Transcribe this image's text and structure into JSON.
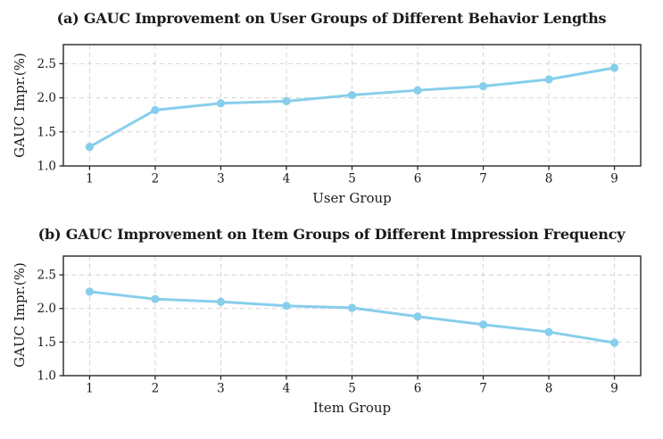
{
  "figure": {
    "background": "#ffffff",
    "text_color": "#1a1a1a"
  },
  "chart_data": [
    {
      "type": "line",
      "title": "(a) GAUC Improvement on User Groups of Different Behavior Lengths",
      "xlabel": "User Group",
      "ylabel": "GAUC Impr.(%)",
      "x": [
        1,
        2,
        3,
        4,
        5,
        6,
        7,
        8,
        9
      ],
      "values": [
        1.28,
        1.82,
        1.92,
        1.95,
        2.04,
        2.11,
        2.17,
        2.27,
        2.44
      ],
      "xtick_labels": [
        "1",
        "2",
        "3",
        "4",
        "5",
        "6",
        "7",
        "8",
        "9"
      ],
      "ytick_values": [
        1.0,
        1.5,
        2.0,
        2.5
      ],
      "ytick_labels": [
        "1.0",
        "1.5",
        "2.0",
        "2.5"
      ],
      "xlim": [
        0.6,
        9.4
      ],
      "ylim": [
        1.0,
        2.78
      ],
      "grid": true,
      "legend": "none",
      "line_color": "#87CEEB",
      "grid_color": "#d5d5d5",
      "spine_color": "#262626",
      "marker": "circle"
    },
    {
      "type": "line",
      "title": "(b) GAUC Improvement on Item Groups of Different Impression Frequency",
      "xlabel": "Item Group",
      "ylabel": "GAUC Impr.(%)",
      "x": [
        1,
        2,
        3,
        4,
        5,
        6,
        7,
        8,
        9
      ],
      "values": [
        2.25,
        2.14,
        2.1,
        2.04,
        2.01,
        1.88,
        1.76,
        1.65,
        1.49
      ],
      "xtick_labels": [
        "1",
        "2",
        "3",
        "4",
        "5",
        "6",
        "7",
        "8",
        "9"
      ],
      "ytick_values": [
        1.0,
        1.5,
        2.0,
        2.5
      ],
      "ytick_labels": [
        "1.0",
        "1.5",
        "2.0",
        "2.5"
      ],
      "xlim": [
        0.6,
        9.4
      ],
      "ylim": [
        1.0,
        2.78
      ],
      "grid": true,
      "legend": "none",
      "line_color": "#87CEEB",
      "grid_color": "#d5d5d5",
      "spine_color": "#262626",
      "marker": "circle"
    }
  ]
}
